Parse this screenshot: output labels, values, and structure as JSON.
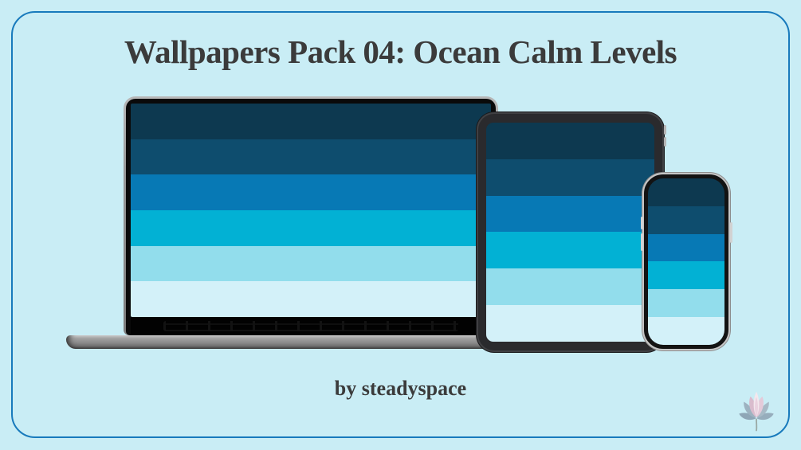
{
  "page": {
    "background_color": "#c9edf5",
    "frame_border_color": "#187abc",
    "text_color": "#3b3b3b"
  },
  "header": {
    "title": "Wallpapers Pack 04: Ocean Calm Levels"
  },
  "footer": {
    "byline": "by steadyspace",
    "brand_icon": "lotus-flower-icon"
  },
  "wallpaper": {
    "name": "Ocean Calm Levels",
    "stripe_colors": [
      "#0d3950",
      "#0e4d6e",
      "#0779b5",
      "#02b1d4",
      "#92ddec",
      "#d3f1f9"
    ]
  },
  "devices": [
    {
      "type": "laptop",
      "label": "laptop-mockup"
    },
    {
      "type": "tablet",
      "label": "tablet-mockup"
    },
    {
      "type": "phone",
      "label": "phone-mockup"
    }
  ]
}
